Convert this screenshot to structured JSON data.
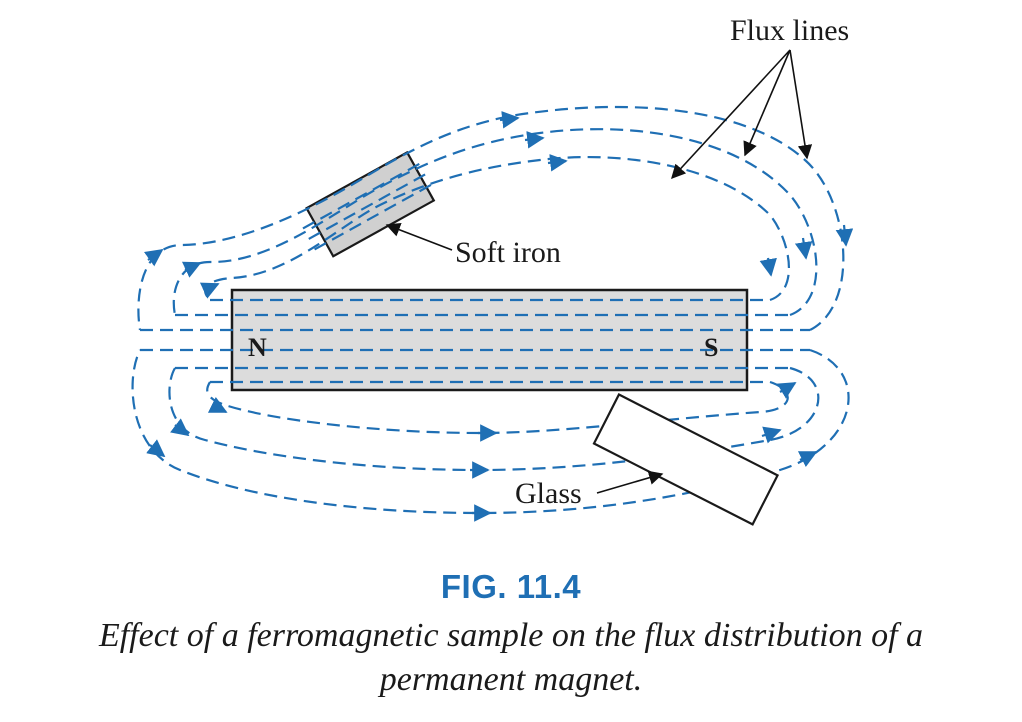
{
  "labels": {
    "flux_lines": "Flux lines",
    "soft_iron": "Soft iron",
    "glass": "Glass",
    "north_pole": "N",
    "south_pole": "S"
  },
  "figure": {
    "number": "FIG. 11.4",
    "caption": "Effect of a ferromagnetic sample on the flux distribution of a permanent magnet."
  },
  "colors": {
    "flux": "#1f6fb4",
    "magnet_fill": "#dcdcdc",
    "soft_iron_fill": "#d0d0d0",
    "fig_number": "#1f6fb4"
  }
}
